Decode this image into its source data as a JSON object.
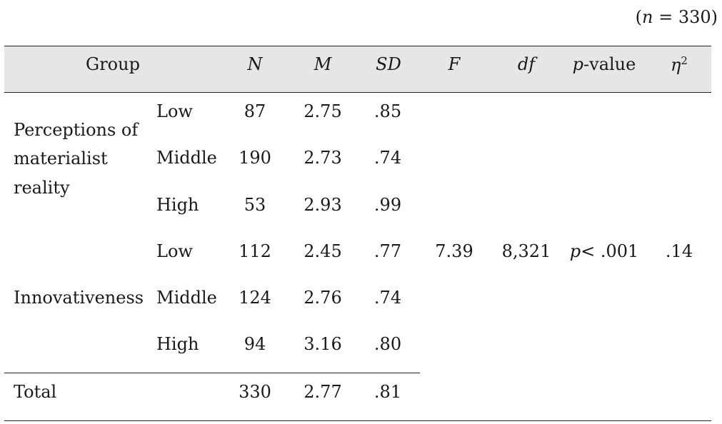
{
  "note": {
    "n_italic": "n",
    "n_rest": " = 330)",
    "open_paren": "("
  },
  "table": {
    "headers": {
      "group": "Group",
      "n": "N",
      "m": "M",
      "sd": "SD",
      "f": "F",
      "df": "df",
      "p_italic": "p",
      "p_rest": "-value",
      "eta": "η",
      "eta_sup": "2"
    },
    "groups": [
      {
        "label_lines": [
          "Perceptions of",
          "materialist",
          "reality"
        ],
        "rows": [
          {
            "level": "Low",
            "n": "87",
            "m": "2.75",
            "sd": ".85"
          },
          {
            "level": "Middle",
            "n": "190",
            "m": "2.73",
            "sd": ".74"
          },
          {
            "level": "High",
            "n": "53",
            "m": "2.93",
            "sd": ".99"
          }
        ]
      },
      {
        "label_lines": [
          "Innovativeness"
        ],
        "rows": [
          {
            "level": "Low",
            "n": "112",
            "m": "2.45",
            "sd": ".77"
          },
          {
            "level": "Middle",
            "n": "124",
            "m": "2.76",
            "sd": ".74"
          },
          {
            "level": "High",
            "n": "94",
            "m": "3.16",
            "sd": ".80"
          }
        ]
      }
    ],
    "stats": {
      "f": "7.39",
      "df": "8,321",
      "p_italic": "p",
      "p_rest": "< .001",
      "eta": ".14"
    },
    "total": {
      "label": "Total",
      "n": "330",
      "m": "2.77",
      "sd": ".81"
    }
  }
}
